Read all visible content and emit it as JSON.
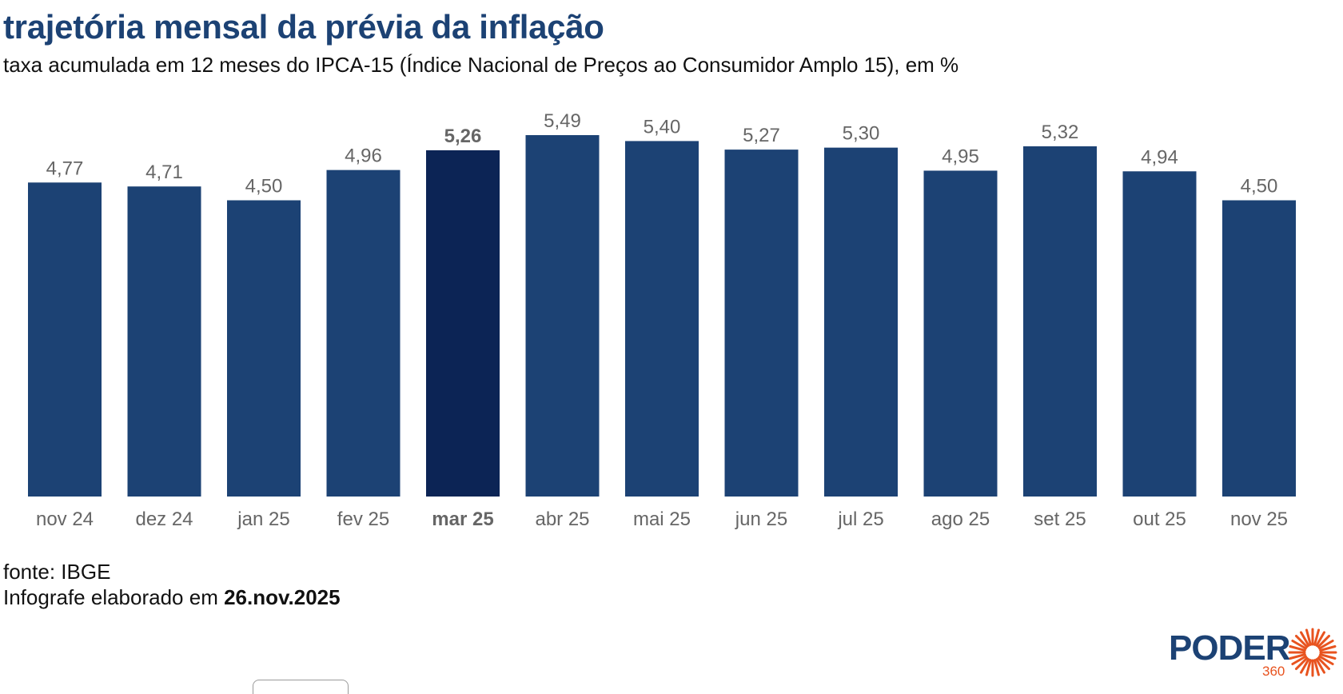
{
  "header": {
    "title": "trajetória mensal da prévia da inflação",
    "subtitle": "taxa acumulada em 12 meses do IPCA-15 (Índice Nacional de Preços ao Consumidor Amplo 15), em %"
  },
  "footer": {
    "source": "fonte: IBGE",
    "credit_prefix": "Infografe elaborado em ",
    "credit_date": "26.nov.2025"
  },
  "logo": {
    "word": "PODER",
    "number": "360"
  },
  "colors": {
    "bar": "#1c4274",
    "bar_highlight": "#0c2455",
    "label": "#666666",
    "logo_accent": "#e8531f"
  },
  "chart_data": {
    "type": "bar",
    "title": "trajetória mensal da prévia da inflação",
    "subtitle": "taxa acumulada em 12 meses do IPCA-15 (Índice Nacional de Preços ao Consumidor Amplo 15), em %",
    "categories": [
      "nov 24",
      "dez 24",
      "jan 25",
      "fev 25",
      "mar 25",
      "abr 25",
      "mai 25",
      "jun 25",
      "jul 25",
      "ago 25",
      "set 25",
      "out 25",
      "nov 25"
    ],
    "values": [
      4.77,
      4.71,
      4.5,
      4.96,
      5.26,
      5.49,
      5.4,
      5.27,
      5.3,
      4.95,
      5.32,
      4.94,
      4.5
    ],
    "value_labels": [
      "4,77",
      "4,71",
      "4,50",
      "4,96",
      "5,26",
      "5,49",
      "5,40",
      "5,27",
      "5,30",
      "4,95",
      "5,32",
      "4,94",
      "4,50"
    ],
    "highlight": "mar 25",
    "grid": false,
    "legend": "none",
    "xlabel": "",
    "ylabel": ""
  }
}
